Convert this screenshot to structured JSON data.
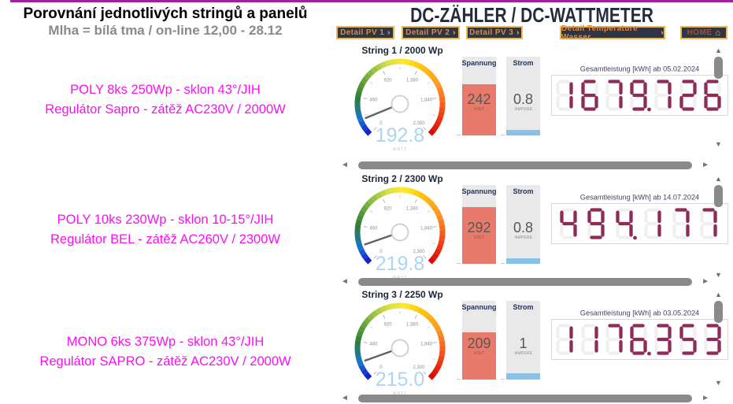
{
  "page": {
    "title": "Porovnání  jednotlivých stringů a panelů",
    "subtitle": "Mlha = bílá tma / on-line 12,00 - 28.12",
    "meter_header": "DC-ZÄHLER / DC-WATTMETER"
  },
  "nav": {
    "chevron": "›",
    "home_glyph": "⌂",
    "buttons": [
      {
        "label": "Detail PV 1"
      },
      {
        "label": "Detail PV 2"
      },
      {
        "label": "Detail PV 3"
      },
      {
        "label": "Detail Temperature Wasser"
      },
      {
        "label": "HOME"
      }
    ]
  },
  "strings": [
    {
      "name": "String 1 / 2000 Wp",
      "description": {
        "line1": "POLY 8ks 250Wp - sklon 43°/JIH",
        "line2": "Regulátor Sapro - zátěž AC230V / 2000W"
      },
      "gauge": {
        "value": "192.8",
        "unit": "WATT",
        "min": 0,
        "max": 2300,
        "ticks": [
          {
            "v": 0,
            "label": "0"
          },
          {
            "v": 460,
            "label": "460"
          },
          {
            "v": 920,
            "label": "920"
          },
          {
            "v": 1380,
            "label": "1,380"
          },
          {
            "v": 1840,
            "label": "1,840"
          },
          {
            "v": 2300,
            "label": "2,300"
          }
        ]
      },
      "voltage": {
        "label": "Spannung",
        "value": "242",
        "unit": "VOLT",
        "fill_pct": 76
      },
      "current": {
        "label": "Strom",
        "value": "0.8",
        "unit": "AMPERE",
        "fill_pct": 8
      },
      "counter": {
        "title": "Gesamtleistung [kWh] ab 05.02.2024",
        "value": "1679.726"
      }
    },
    {
      "name": "String 2 / 2300 Wp",
      "description": {
        "line1": "POLY 10ks 230Wp - sklon 10-15°/JIH",
        "line2": "Regulátor BEL - zátěž AC260V / 2300W"
      },
      "gauge": {
        "value": "219.8",
        "unit": "WATT",
        "min": 0,
        "max": 2300,
        "ticks": [
          {
            "v": 0,
            "label": "0"
          },
          {
            "v": 460,
            "label": "460"
          },
          {
            "v": 920,
            "label": "920"
          },
          {
            "v": 1380,
            "label": "1,380"
          },
          {
            "v": 1840,
            "label": "1,840"
          },
          {
            "v": 2300,
            "label": "2,300"
          }
        ]
      },
      "voltage": {
        "label": "Spannung",
        "value": "292",
        "unit": "VOLT",
        "fill_pct": 85
      },
      "current": {
        "label": "Strom",
        "value": "0.8",
        "unit": "AMPERE",
        "fill_pct": 8
      },
      "counter": {
        "title": "Gesamtleistung [kWh] ab 14.07.2024",
        "value": "494.177"
      }
    },
    {
      "name": "String 3 / 2250 Wp",
      "description": {
        "line1": "MONO 6ks 375Wp - sklon 43°/JIH",
        "line2": "Regulátor SAPRO - zátěž AC230V / 2000W"
      },
      "gauge": {
        "value": "215.0",
        "unit": "WATT",
        "min": 0,
        "max": 2300,
        "ticks": [
          {
            "v": 0,
            "label": "0"
          },
          {
            "v": 460,
            "label": "460"
          },
          {
            "v": 920,
            "label": "920"
          },
          {
            "v": 1380,
            "label": "1,380"
          },
          {
            "v": 1840,
            "label": "1,840"
          },
          {
            "v": 2300,
            "label": "2,300"
          }
        ]
      },
      "voltage": {
        "label": "Spannung",
        "value": "209",
        "unit": "VOLT",
        "fill_pct": 71
      },
      "current": {
        "label": "Strom",
        "value": "1",
        "unit": "AMPERE",
        "fill_pct": 10
      },
      "counter": {
        "title": "Gesamtleistung [kWh] ab 03.05.2024",
        "value": "1176.353"
      }
    }
  ],
  "colors": {
    "accent": "#A2219E",
    "nav_bg": "#2F3447",
    "nav_border": "#EFB84D",
    "nav_text": "#DD8C3C",
    "gauge_value": "#ACD5F1",
    "voltage_fill": "#E87A6C",
    "current_fill": "#87C3E9",
    "segment_lit": "#8E2B58",
    "segment_ghost": "#F2EFF1",
    "magenta_text": "#FB10F2",
    "scroll_thumb": "#8A8A8A"
  }
}
